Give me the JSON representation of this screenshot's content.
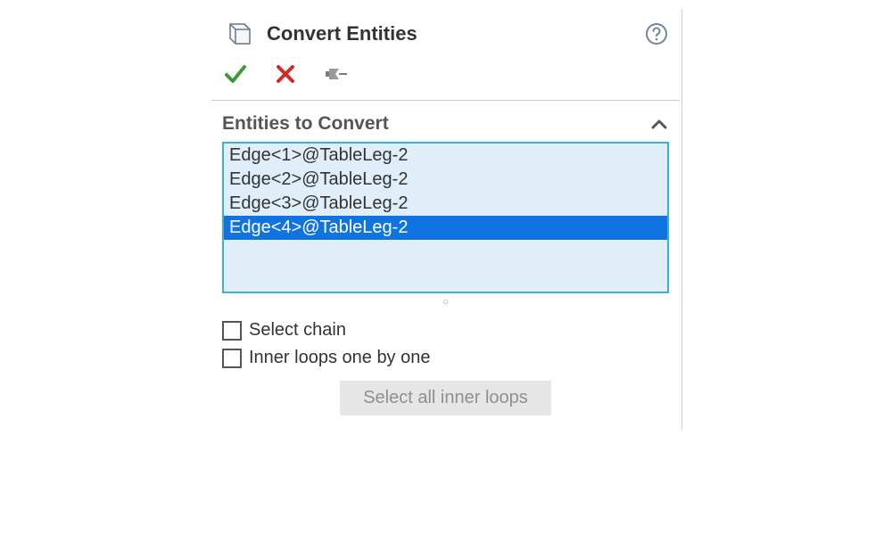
{
  "colors": {
    "panel_border": "#d0d0d0",
    "listbox_border": "#3ab0d8",
    "listbox_bg": "#dfeef8",
    "selected_bg": "#0f74df",
    "selected_fg": "#ffffff",
    "text": "#333333",
    "subtle_text": "#555555",
    "disabled_btn_bg": "#e6e6e6",
    "disabled_btn_fg": "#8f8f8f",
    "ok_green": "#3e9b36",
    "cancel_red": "#d22a1f",
    "pin_gray": "#7d7d7d",
    "help_gray": "#6e84a3"
  },
  "header": {
    "title": "Convert Entities"
  },
  "toolbar": {
    "ok_label": "OK",
    "cancel_label": "Cancel",
    "pin_label": "Pin"
  },
  "section": {
    "title": "Entities to Convert",
    "collapsed": false
  },
  "entities": {
    "items": [
      {
        "label": "Edge<1>@TableLeg-2",
        "selected": false
      },
      {
        "label": "Edge<2>@TableLeg-2",
        "selected": false
      },
      {
        "label": "Edge<3>@TableLeg-2",
        "selected": false
      },
      {
        "label": "Edge<4>@TableLeg-2",
        "selected": true
      }
    ]
  },
  "options": {
    "select_chain_label": "Select chain",
    "select_chain_checked": false,
    "inner_loops_label": "Inner loops one by one",
    "inner_loops_checked": false,
    "select_all_inner_label": "Select all inner loops"
  }
}
